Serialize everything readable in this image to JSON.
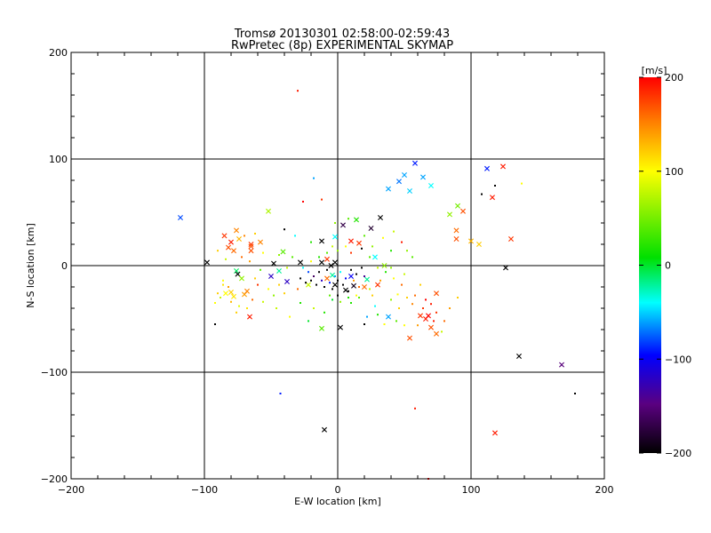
{
  "chart_data": {
    "type": "scatter",
    "title": "Tromsø 20130301 02:58:00-02:59:43",
    "subtitle": "RwPretec (8p) EXPERIMENTAL SKYMAP",
    "xlabel": "E-W location [km]",
    "ylabel": "N-S location [km]",
    "xlim": [
      -200,
      200
    ],
    "ylim": [
      -200,
      200
    ],
    "x_ticks": [
      -200,
      -100,
      0,
      100,
      200
    ],
    "y_ticks": [
      -200,
      -100,
      0,
      100,
      200
    ],
    "x_tick_labels": [
      "−200",
      "−100",
      "0",
      "100",
      "200"
    ],
    "y_tick_labels": [
      "−200",
      "−100",
      "0",
      "100",
      "200"
    ],
    "grid": "major lines at ±100 and 0",
    "colorbar": {
      "label": "[m/s]",
      "range": [
        -200,
        200
      ],
      "ticks": [
        200,
        100,
        0,
        -100,
        -200
      ],
      "tick_labels": [
        "200",
        "100",
        "0",
        "−100",
        "−200"
      ],
      "colormap": "black-purple-blue-cyan-green-yellow-orange-red"
    },
    "series": [
      {
        "marker": "x",
        "points": [
          [
            -118,
            45,
            -80
          ],
          [
            -98,
            3,
            -200
          ],
          [
            -85,
            28,
            180
          ],
          [
            -82,
            17,
            170
          ],
          [
            -80,
            22,
            190
          ],
          [
            -78,
            14,
            160
          ],
          [
            -76,
            33,
            150
          ],
          [
            -74,
            25,
            130
          ],
          [
            -76,
            -5,
            -10
          ],
          [
            -75,
            -8,
            -200
          ],
          [
            -72,
            -12,
            60
          ],
          [
            -65,
            20,
            180
          ],
          [
            -65,
            14,
            170
          ],
          [
            -66,
            -48,
            190
          ],
          [
            -58,
            22,
            150
          ],
          [
            -52,
            51,
            70
          ],
          [
            -48,
            2,
            -200
          ],
          [
            -44,
            -5,
            -20
          ],
          [
            -41,
            13,
            40
          ],
          [
            -38,
            -15,
            -120
          ],
          [
            -28,
            3,
            -200
          ],
          [
            -22,
            -18,
            80
          ],
          [
            -12,
            3,
            -200
          ],
          [
            -8,
            6,
            180
          ],
          [
            -5,
            0,
            -200
          ],
          [
            -2,
            3,
            -200
          ],
          [
            -12,
            23,
            -200
          ],
          [
            -2,
            27,
            -40
          ],
          [
            4,
            38,
            -170
          ],
          [
            10,
            23,
            190
          ],
          [
            16,
            21,
            180
          ],
          [
            14,
            43,
            20
          ],
          [
            25,
            35,
            -180
          ],
          [
            32,
            45,
            -200
          ],
          [
            28,
            8,
            -40
          ],
          [
            35,
            0,
            60
          ],
          [
            20,
            -20,
            160
          ],
          [
            30,
            -18,
            180
          ],
          [
            38,
            72,
            -60
          ],
          [
            46,
            79,
            -70
          ],
          [
            50,
            85,
            -60
          ],
          [
            54,
            70,
            -50
          ],
          [
            58,
            96,
            -90
          ],
          [
            64,
            83,
            -60
          ],
          [
            70,
            75,
            -40
          ],
          [
            84,
            48,
            60
          ],
          [
            89,
            33,
            160
          ],
          [
            89,
            25,
            170
          ],
          [
            90,
            56,
            50
          ],
          [
            94,
            51,
            170
          ],
          [
            100,
            23,
            130
          ],
          [
            106,
            20,
            120
          ],
          [
            112,
            91,
            -90
          ],
          [
            116,
            64,
            190
          ],
          [
            124,
            93,
            190
          ],
          [
            130,
            25,
            180
          ],
          [
            126,
            -2,
            -200
          ],
          [
            136,
            -85,
            -200
          ],
          [
            168,
            -93,
            -150
          ],
          [
            -10,
            -154,
            -200
          ],
          [
            118,
            -157,
            190
          ],
          [
            54,
            -68,
            170
          ],
          [
            66,
            -50,
            190
          ],
          [
            62,
            -47,
            180
          ],
          [
            68,
            -47,
            200
          ],
          [
            70,
            -58,
            170
          ],
          [
            74,
            -26,
            170
          ],
          [
            74,
            -64,
            160
          ],
          [
            38,
            -48,
            -60
          ],
          [
            2,
            -58,
            -200
          ],
          [
            -12,
            -59,
            40
          ],
          [
            -65,
            18,
            170
          ],
          [
            -2,
            -18,
            -200
          ],
          [
            6,
            -23,
            -200
          ],
          [
            10,
            -10,
            -100
          ],
          [
            -8,
            -12,
            160
          ],
          [
            -4,
            -9,
            -20
          ],
          [
            12,
            -19,
            -190
          ],
          [
            22,
            -13,
            -20
          ],
          [
            -50,
            -10,
            -120
          ],
          [
            -80,
            -25,
            120
          ],
          [
            -84,
            -26,
            100
          ],
          [
            -78,
            -29,
            110
          ],
          [
            -70,
            -27,
            140
          ],
          [
            -68,
            -24,
            150
          ]
        ]
      },
      {
        "marker": "dot",
        "points": [
          [
            -30,
            164,
            190
          ],
          [
            -43,
            -120,
            -90
          ],
          [
            58,
            -134,
            190
          ],
          [
            68,
            -200,
            200
          ],
          [
            178,
            -120,
            -200
          ],
          [
            -92,
            -55,
            -200
          ],
          [
            138,
            77,
            100
          ],
          [
            118,
            75,
            -200
          ],
          [
            108,
            67,
            -200
          ],
          [
            -18,
            82,
            -60
          ],
          [
            -12,
            62,
            180
          ],
          [
            -26,
            60,
            200
          ],
          [
            48,
            22,
            190
          ],
          [
            58,
            -28,
            160
          ],
          [
            62,
            -18,
            120
          ],
          [
            64,
            -40,
            180
          ],
          [
            56,
            -36,
            150
          ],
          [
            60,
            -56,
            140
          ],
          [
            78,
            -62,
            80
          ],
          [
            72,
            -52,
            190
          ],
          [
            45,
            -27,
            100
          ],
          [
            40,
            -32,
            60
          ],
          [
            28,
            -38,
            -40
          ],
          [
            22,
            -48,
            -60
          ],
          [
            20,
            -55,
            -200
          ],
          [
            35,
            -55,
            100
          ],
          [
            46,
            -40,
            120
          ],
          [
            16,
            -30,
            40
          ],
          [
            24,
            -22,
            80
          ],
          [
            10,
            -35,
            20
          ],
          [
            0,
            -28,
            -200
          ],
          [
            -4,
            -32,
            0
          ],
          [
            -18,
            -40,
            80
          ],
          [
            -28,
            -35,
            20
          ],
          [
            -36,
            -48,
            100
          ],
          [
            -30,
            -22,
            160
          ],
          [
            -40,
            -26,
            120
          ],
          [
            -48,
            -28,
            60
          ],
          [
            -56,
            -34,
            80
          ],
          [
            -60,
            -18,
            180
          ],
          [
            -62,
            -12,
            120
          ],
          [
            -58,
            -4,
            40
          ],
          [
            -66,
            4,
            140
          ],
          [
            -72,
            8,
            160
          ],
          [
            -86,
            -18,
            110
          ],
          [
            -90,
            -26,
            120
          ],
          [
            -92,
            -35,
            100
          ],
          [
            -88,
            -30,
            80
          ],
          [
            -80,
            -34,
            130
          ],
          [
            -74,
            -38,
            90
          ],
          [
            -28,
            -12,
            -200
          ],
          [
            -24,
            -16,
            -200
          ],
          [
            -20,
            -14,
            -200
          ],
          [
            -18,
            -10,
            -160
          ],
          [
            -16,
            -18,
            -200
          ],
          [
            -14,
            -6,
            -200
          ],
          [
            -12,
            -14,
            -120
          ],
          [
            -10,
            -20,
            -200
          ],
          [
            -8,
            -4,
            -200
          ],
          [
            -6,
            -16,
            -90
          ],
          [
            -4,
            -22,
            -200
          ],
          [
            -2,
            -10,
            -60
          ],
          [
            0,
            -14,
            -200
          ],
          [
            2,
            -6,
            -40
          ],
          [
            4,
            -18,
            -200
          ],
          [
            6,
            -12,
            -100
          ],
          [
            8,
            -24,
            -200
          ],
          [
            10,
            -4,
            -200
          ],
          [
            12,
            -14,
            140
          ],
          [
            14,
            -8,
            -200
          ],
          [
            16,
            -20,
            160
          ],
          [
            18,
            -2,
            -200
          ],
          [
            20,
            -10,
            -140
          ],
          [
            -22,
            -6,
            -80
          ],
          [
            -26,
            -2,
            -40
          ],
          [
            -6,
            -28,
            40
          ],
          [
            2,
            -34,
            60
          ],
          [
            8,
            -30,
            20
          ],
          [
            14,
            -28,
            100
          ],
          [
            26,
            -28,
            120
          ],
          [
            32,
            -14,
            140
          ],
          [
            36,
            -6,
            20
          ],
          [
            40,
            -2,
            60
          ],
          [
            42,
            -12,
            100
          ],
          [
            30,
            -2,
            80
          ],
          [
            24,
            8,
            40
          ],
          [
            18,
            16,
            -200
          ],
          [
            10,
            12,
            180
          ],
          [
            6,
            18,
            100
          ],
          [
            0,
            14,
            60
          ],
          [
            -4,
            18,
            80
          ],
          [
            -8,
            12,
            40
          ],
          [
            -14,
            8,
            20
          ],
          [
            -20,
            4,
            100
          ],
          [
            -34,
            8,
            40
          ],
          [
            -38,
            -2,
            80
          ],
          [
            -44,
            -18,
            120
          ],
          [
            -52,
            -22,
            100
          ],
          [
            -64,
            -32,
            160
          ],
          [
            -68,
            -40,
            110
          ],
          [
            -76,
            -44,
            120
          ],
          [
            -82,
            -20,
            140
          ],
          [
            -86,
            -14,
            100
          ],
          [
            -84,
            6,
            80
          ],
          [
            -90,
            14,
            120
          ],
          [
            -70,
            28,
            150
          ],
          [
            -62,
            30,
            120
          ],
          [
            -40,
            34,
            -200
          ],
          [
            -32,
            28,
            -40
          ],
          [
            -20,
            22,
            20
          ],
          [
            20,
            28,
            40
          ],
          [
            26,
            18,
            60
          ],
          [
            34,
            26,
            100
          ],
          [
            42,
            32,
            80
          ],
          [
            40,
            14,
            20
          ],
          [
            52,
            14,
            60
          ],
          [
            56,
            8,
            40
          ],
          [
            50,
            -8,
            80
          ],
          [
            48,
            -18,
            160
          ],
          [
            52,
            -30,
            120
          ],
          [
            44,
            -52,
            40
          ],
          [
            30,
            -46,
            20
          ],
          [
            50,
            -56,
            100
          ],
          [
            66,
            -32,
            200
          ],
          [
            70,
            -36,
            190
          ],
          [
            74,
            -44,
            180
          ],
          [
            80,
            -52,
            160
          ],
          [
            84,
            -40,
            140
          ],
          [
            90,
            -30,
            120
          ],
          [
            -44,
            10,
            60
          ],
          [
            -56,
            12,
            100
          ],
          [
            -2,
            40,
            60
          ],
          [
            8,
            44,
            40
          ],
          [
            -10,
            -44,
            20
          ],
          [
            -22,
            -52,
            0
          ],
          [
            -46,
            -40,
            80
          ]
        ]
      }
    ]
  }
}
